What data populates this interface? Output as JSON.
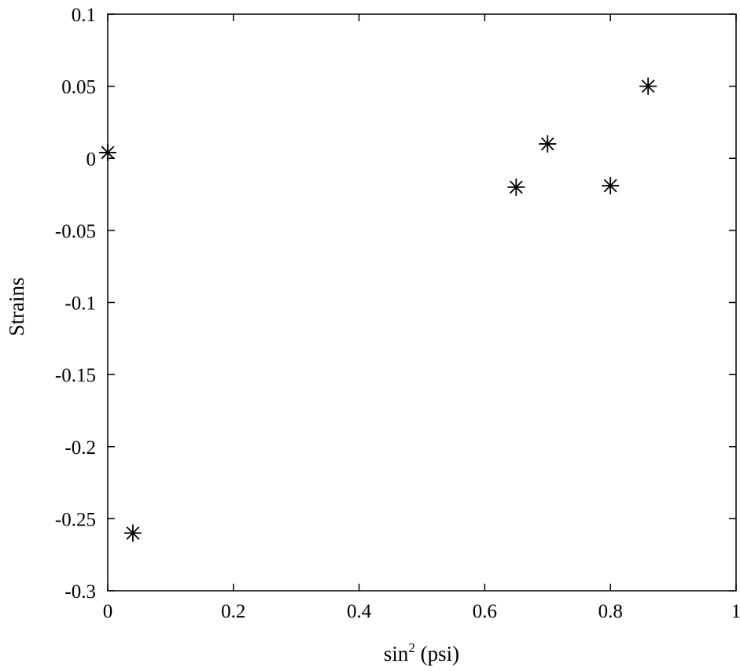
{
  "chart_data": {
    "type": "scatter",
    "title": "",
    "xlabel_base": "sin",
    "xlabel_sup": "2",
    "xlabel_rest": " (psi)",
    "ylabel": "Strains",
    "xlim": [
      0,
      1
    ],
    "ylim": [
      -0.3,
      0.1
    ],
    "grid": false,
    "marker": "asterisk",
    "marker_color": "#000000",
    "x_ticks": [
      {
        "value": 0,
        "label": "0"
      },
      {
        "value": 0.2,
        "label": "0.2"
      },
      {
        "value": 0.4,
        "label": "0.4"
      },
      {
        "value": 0.6,
        "label": "0.6"
      },
      {
        "value": 0.8,
        "label": "0.8"
      },
      {
        "value": 1,
        "label": "1"
      }
    ],
    "y_ticks": [
      {
        "value": 0.1,
        "label": "0.1"
      },
      {
        "value": 0.05,
        "label": "0.05"
      },
      {
        "value": 0,
        "label": "0"
      },
      {
        "value": -0.05,
        "label": "-0.05"
      },
      {
        "value": -0.1,
        "label": "-0.1"
      },
      {
        "value": -0.15,
        "label": "-0.15"
      },
      {
        "value": -0.2,
        "label": "-0.2"
      },
      {
        "value": -0.25,
        "label": "-0.25"
      },
      {
        "value": -0.3,
        "label": "-0.3"
      }
    ],
    "series": [
      {
        "points": [
          {
            "x": 0.0,
            "y": 0.004
          },
          {
            "x": 0.04,
            "y": -0.26
          },
          {
            "x": 0.65,
            "y": -0.02
          },
          {
            "x": 0.7,
            "y": 0.01
          },
          {
            "x": 0.8,
            "y": -0.019
          },
          {
            "x": 0.86,
            "y": 0.05
          }
        ]
      }
    ]
  }
}
